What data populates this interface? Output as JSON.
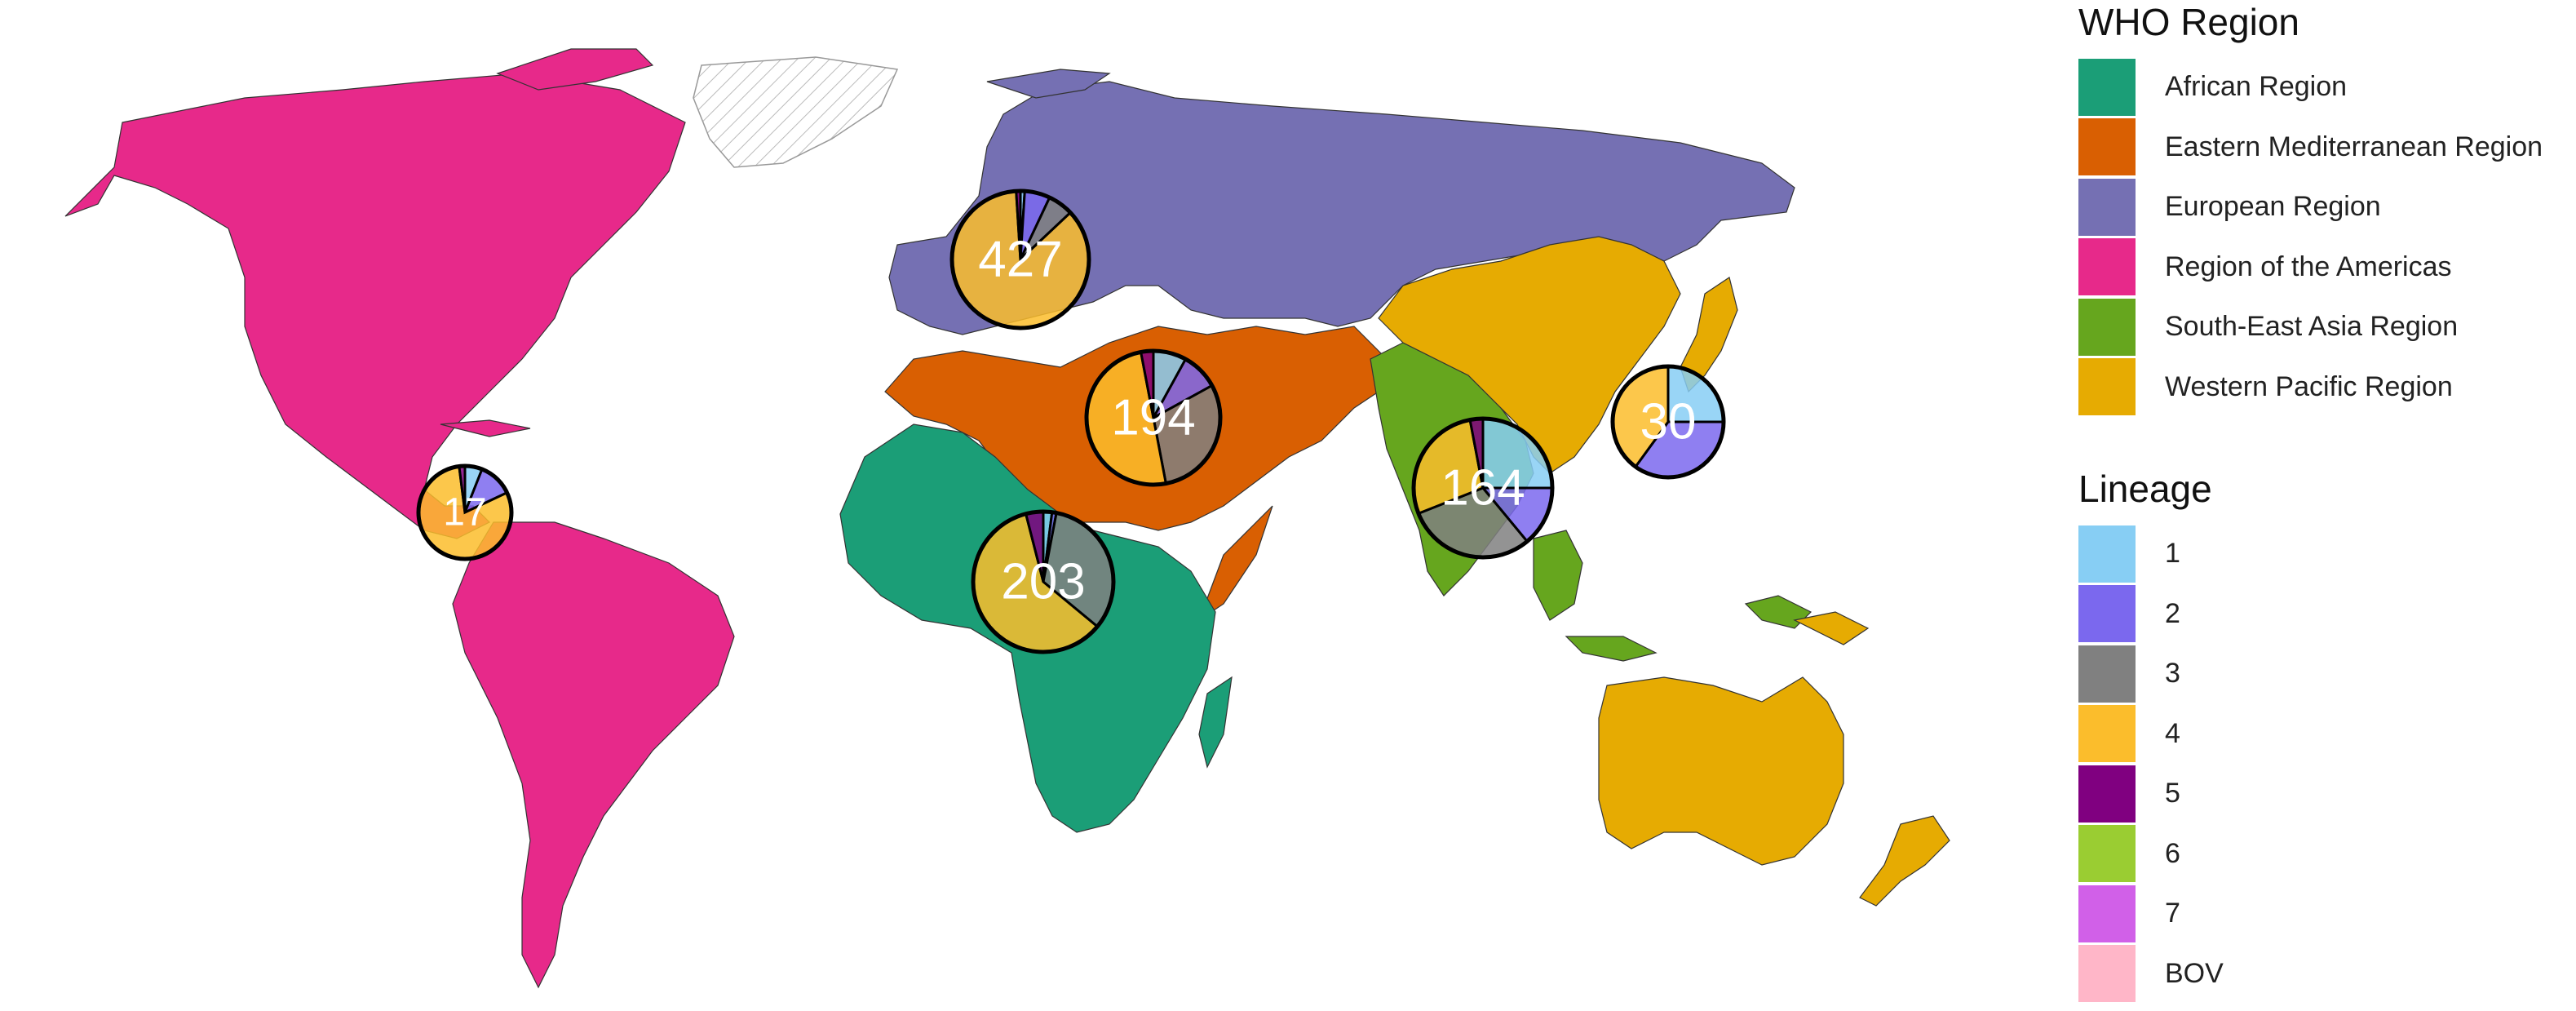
{
  "regions": {
    "title": "WHO Region",
    "items": [
      {
        "label": "African Region",
        "color": "#1b9e77"
      },
      {
        "label": "Eastern Mediterranean Region",
        "color": "#d95f02"
      },
      {
        "label": "European Region",
        "color": "#7570b3"
      },
      {
        "label": "Region of the Americas",
        "color": "#e7298a"
      },
      {
        "label": "South-East Asia Region",
        "color": "#66a61e"
      },
      {
        "label": "Western Pacific Region",
        "color": "#e6ab02"
      }
    ]
  },
  "lineages": {
    "title": "Lineage",
    "items": [
      {
        "label": "1",
        "color": "#87cef4"
      },
      {
        "label": "2",
        "color": "#7b68ee"
      },
      {
        "label": "3",
        "color": "#808080"
      },
      {
        "label": "4",
        "color": "#fbbd2c"
      },
      {
        "label": "5",
        "color": "#800080"
      },
      {
        "label": "6",
        "color": "#9acd32"
      },
      {
        "label": "7",
        "color": "#d160e8"
      },
      {
        "label": "BOV",
        "color": "#ffb6c8"
      }
    ]
  },
  "pies": [
    {
      "region": "Region of the Americas",
      "total": "17",
      "fractions": [
        0.06,
        0.12,
        0.0,
        0.8,
        0.02,
        0.0,
        0.0,
        0.0
      ]
    },
    {
      "region": "European Region",
      "total": "427",
      "fractions": [
        0.01,
        0.06,
        0.06,
        0.86,
        0.01,
        0.0,
        0.0,
        0.0
      ]
    },
    {
      "region": "Eastern Mediterranean Region",
      "total": "194",
      "fractions": [
        0.08,
        0.09,
        0.3,
        0.5,
        0.03,
        0.0,
        0.0,
        0.0
      ]
    },
    {
      "region": "African Region",
      "total": "203",
      "fractions": [
        0.02,
        0.01,
        0.33,
        0.6,
        0.04,
        0.0,
        0.0,
        0.0
      ]
    },
    {
      "region": "South-East Asia Region",
      "total": "164",
      "fractions": [
        0.25,
        0.14,
        0.3,
        0.28,
        0.03,
        0.0,
        0.0,
        0.0
      ]
    },
    {
      "region": "Western Pacific Region",
      "total": "30",
      "fractions": [
        0.25,
        0.35,
        0.0,
        0.4,
        0.0,
        0.0,
        0.0,
        0.0
      ]
    }
  ]
}
